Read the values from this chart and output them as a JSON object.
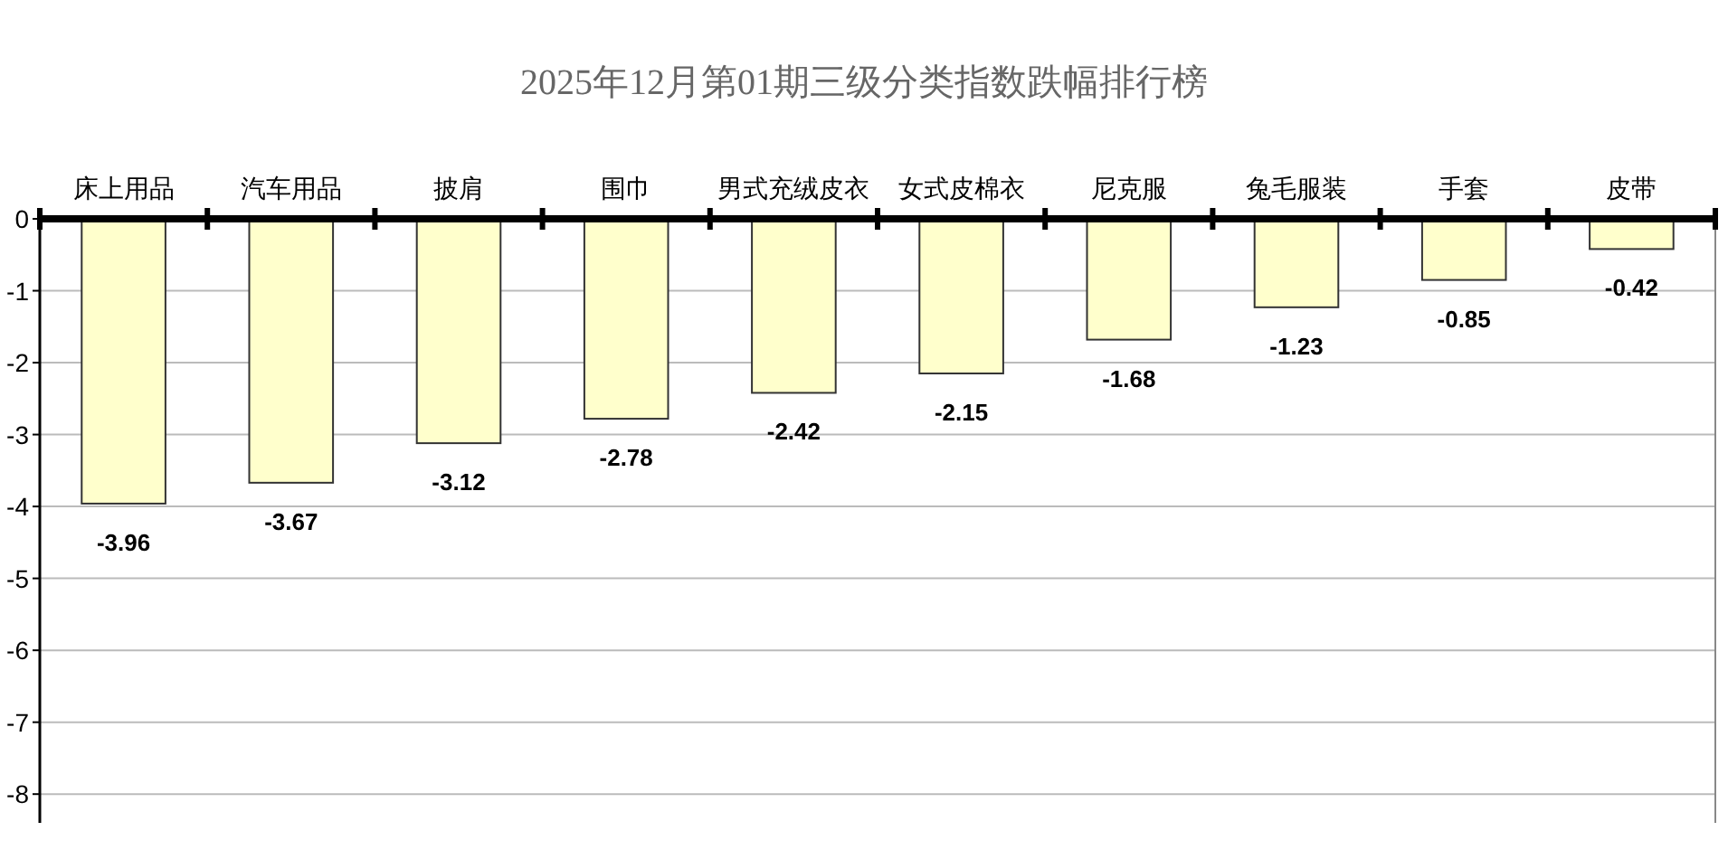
{
  "chart_data": {
    "type": "bar",
    "title": "2025年12月第01期三级分类指数跌幅排行榜",
    "categories": [
      "床上用品",
      "汽车用品",
      "披肩",
      "围巾",
      "男式充绒皮衣",
      "女式皮棉衣",
      "尼克服",
      "兔毛服装",
      "手套",
      "皮带"
    ],
    "values": [
      -3.96,
      -3.67,
      -3.12,
      -2.78,
      -2.42,
      -2.15,
      -1.68,
      -1.23,
      -0.85,
      -0.42
    ],
    "color": "#ffffcc",
    "data_labels": true,
    "ylim": [
      -8.4,
      0
    ],
    "yticks": [
      0,
      -1,
      -2,
      -3,
      -4,
      -5,
      -6,
      -7,
      -8
    ],
    "grid": "y"
  }
}
